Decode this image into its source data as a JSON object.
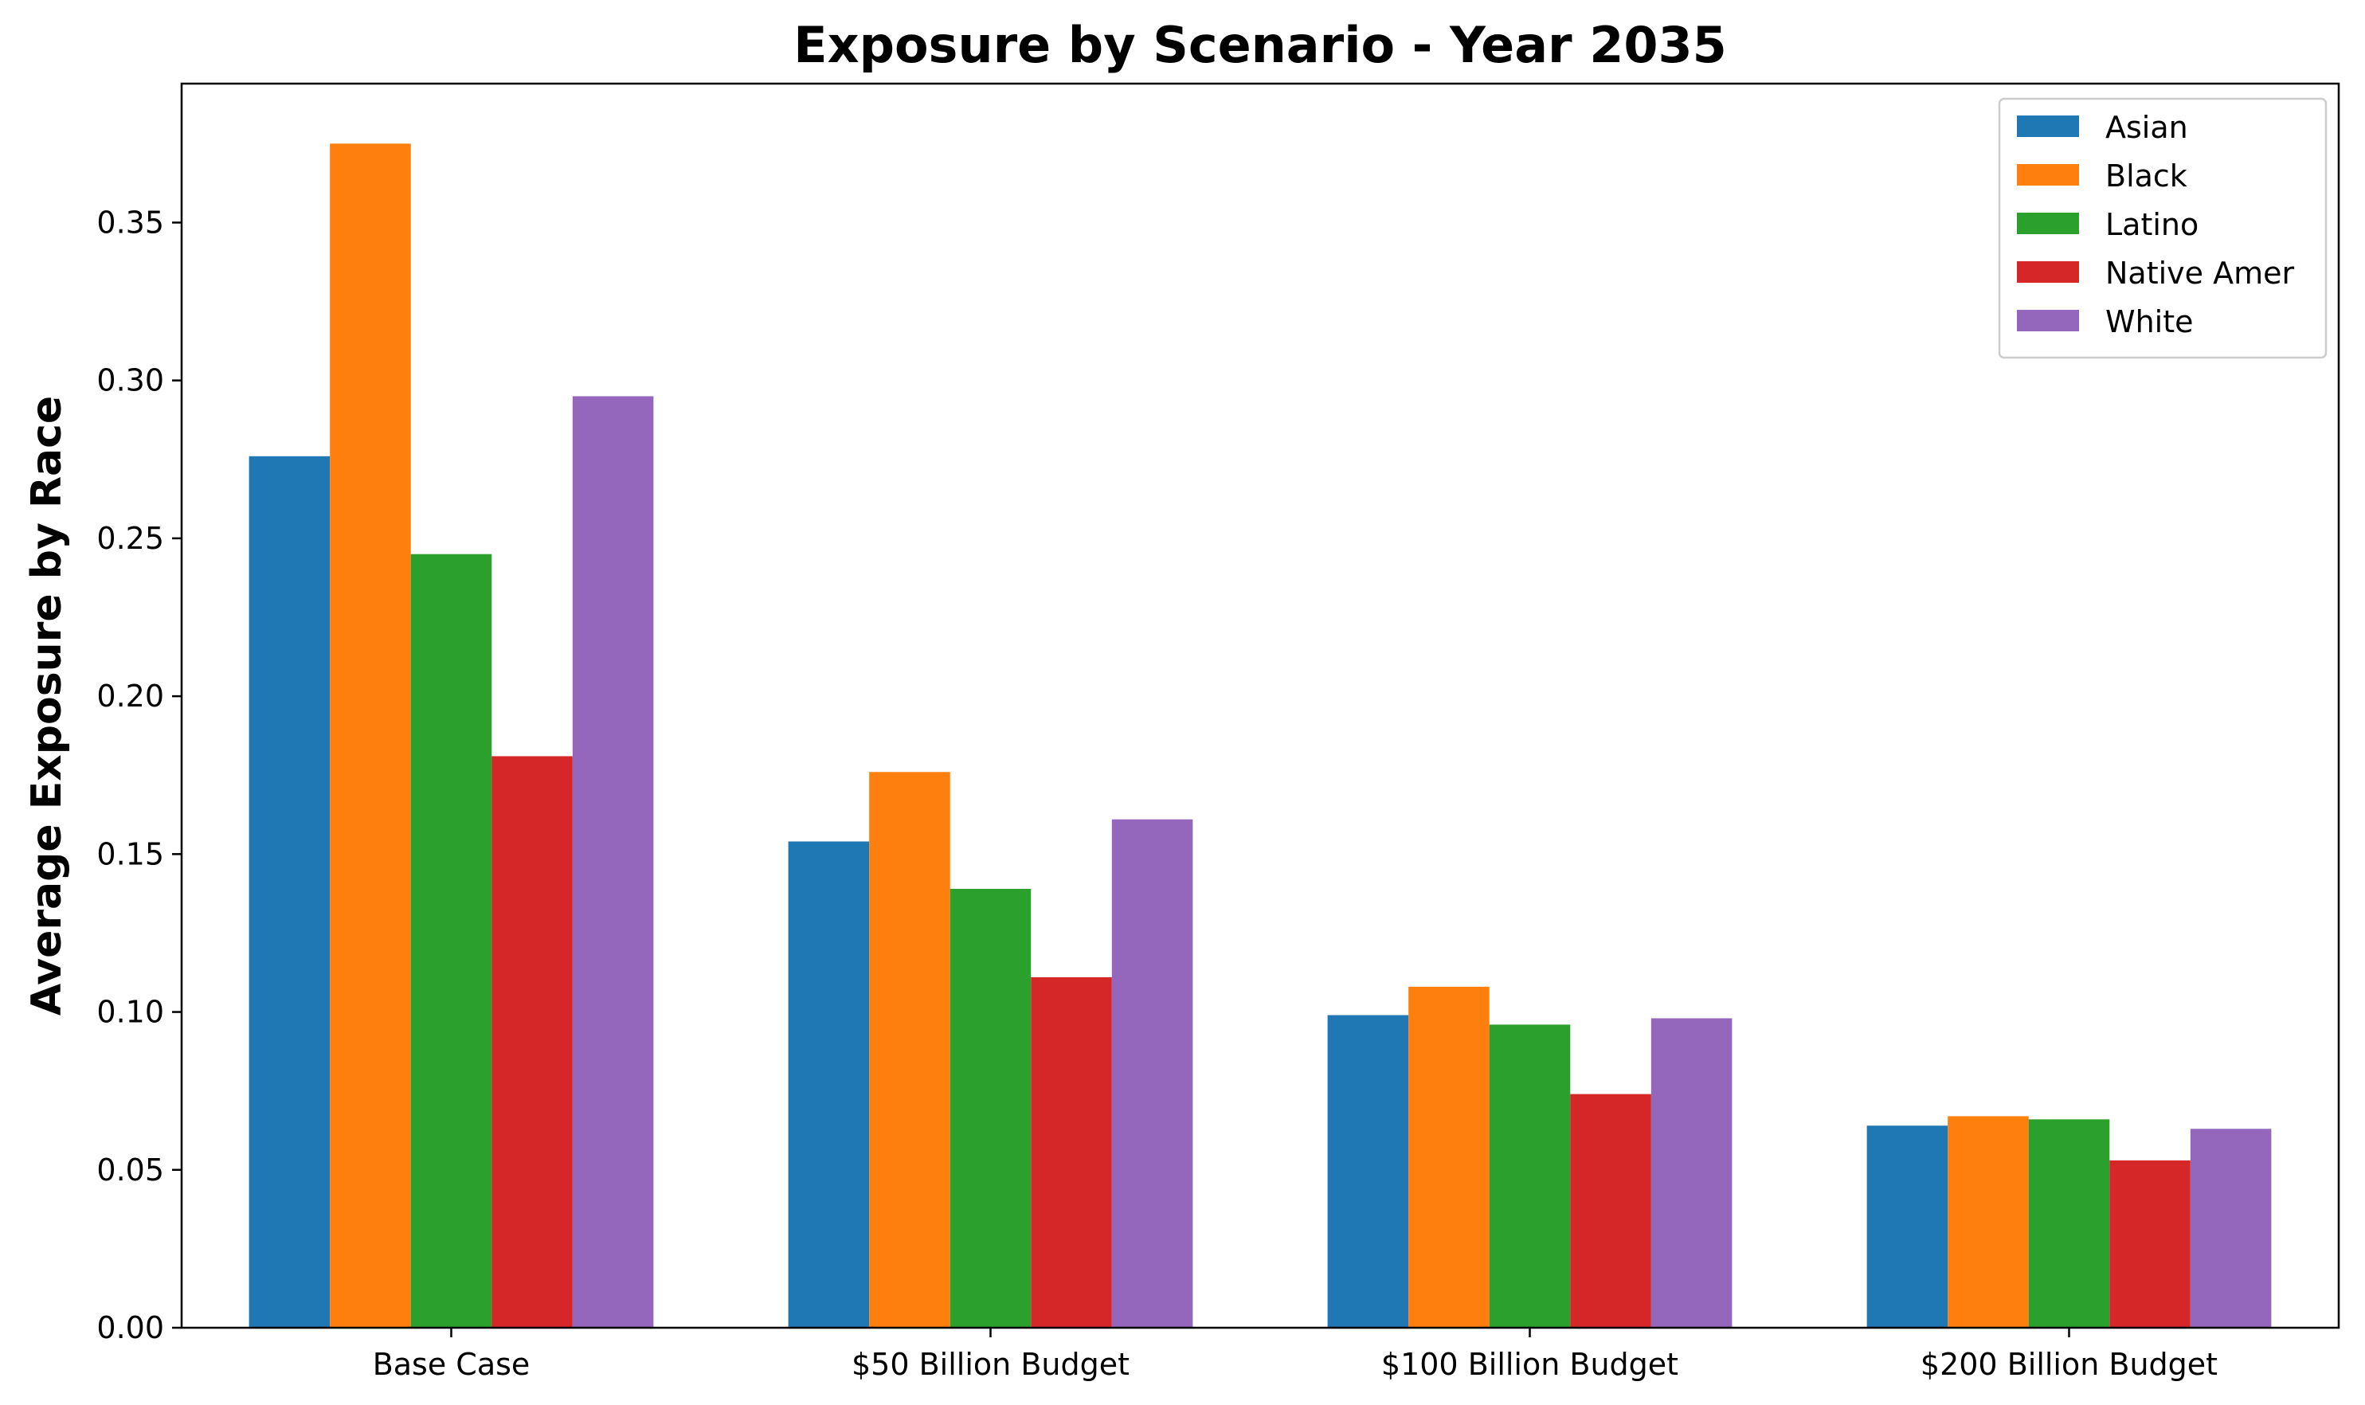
{
  "chart_data": {
    "type": "bar",
    "title": "Exposure by Scenario - Year 2035",
    "xlabel": "",
    "ylabel": "Average Exposure by Race",
    "categories": [
      "Base Case",
      "$50 Billion Budget",
      "$100 Billion Budget",
      "$200 Billion Budget"
    ],
    "series": [
      {
        "name": "Asian",
        "color": "#1f77b4",
        "values": [
          0.276,
          0.154,
          0.099,
          0.064
        ]
      },
      {
        "name": "Black",
        "color": "#ff7f0e",
        "values": [
          0.375,
          0.176,
          0.108,
          0.067
        ]
      },
      {
        "name": "Latino",
        "color": "#2ca02c",
        "values": [
          0.245,
          0.139,
          0.096,
          0.066
        ]
      },
      {
        "name": "Native Amer",
        "color": "#d62728",
        "values": [
          0.181,
          0.111,
          0.074,
          0.053
        ]
      },
      {
        "name": "White",
        "color": "#9467bd",
        "values": [
          0.295,
          0.161,
          0.098,
          0.063
        ]
      }
    ],
    "ylim": [
      0,
      0.394
    ],
    "yticks": [
      "0.00",
      "0.05",
      "0.10",
      "0.15",
      "0.20",
      "0.25",
      "0.30",
      "0.35"
    ],
    "grid": false,
    "legend_position": "top-right"
  }
}
